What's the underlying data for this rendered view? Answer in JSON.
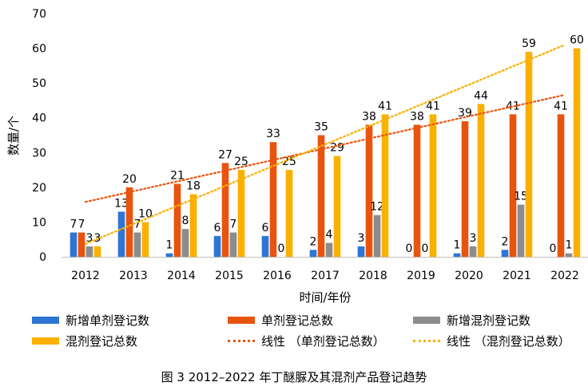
{
  "chart_data": {
    "type": "bar",
    "title": "",
    "xlabel": "时间/年份",
    "ylabel": "数量/个",
    "ylim": [
      0,
      70
    ],
    "yticks": [
      0,
      10,
      20,
      30,
      40,
      50,
      60,
      70
    ],
    "grid": false,
    "legend_position": "bottom",
    "categories": [
      "2012",
      "2013",
      "2014",
      "2015",
      "2016",
      "2017",
      "2018",
      "2019",
      "2020",
      "2021",
      "2022"
    ],
    "series": [
      {
        "name": "新增单剂登记数",
        "color": "#2E75D4",
        "values": [
          7,
          13,
          1,
          6,
          6,
          2,
          3,
          0,
          1,
          2,
          0
        ]
      },
      {
        "name": "单剂登记总数",
        "color": "#E8540E",
        "values": [
          7,
          20,
          21,
          27,
          33,
          35,
          38,
          38,
          39,
          41,
          41
        ]
      },
      {
        "name": "新增混剂登记数",
        "color": "#8C8C8C",
        "values": [
          3,
          7,
          8,
          7,
          0,
          4,
          12,
          0,
          3,
          15,
          1
        ]
      },
      {
        "name": "混剂登记总数",
        "color": "#FBB000",
        "values": [
          3,
          10,
          18,
          25,
          25,
          29,
          41,
          41,
          44,
          59,
          60
        ]
      }
    ],
    "trendlines": [
      {
        "name": "线性 （单剂登记总数）",
        "color": "#E8540E",
        "style": "dotted",
        "start": 15.8,
        "end": 46.6
      },
      {
        "name": "线性 （混剂登记总数）",
        "color": "#FBB000",
        "style": "dotted",
        "start": 3.7,
        "end": 61.0
      }
    ]
  },
  "legend": {
    "row1": [
      "新增单剂登记数",
      "单剂登记总数",
      "新增混剂登记数"
    ],
    "row2": [
      "混剂登记总数",
      "线性 （单剂登记总数）",
      "线性 （混剂登记总数）"
    ]
  },
  "caption": "图 3  2012–2022 年丁醚脲及其混剂产品登记趋势"
}
